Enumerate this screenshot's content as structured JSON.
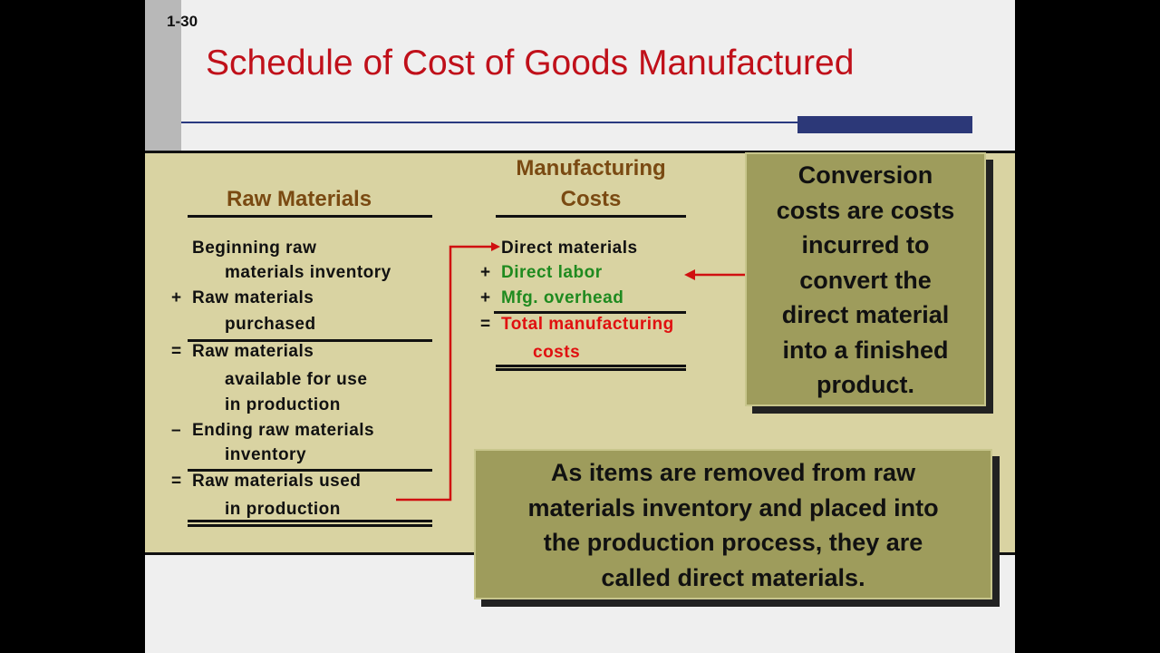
{
  "slide_number": "1-30",
  "title": "Schedule of Cost of Goods Manufactured",
  "raw_materials": {
    "heading": "Raw Materials",
    "rows": [
      {
        "lines": [
          "Beginning raw",
          "materials inventory"
        ]
      },
      {
        "op": "+",
        "lines": [
          "Raw materials",
          "purchased"
        ]
      },
      {
        "op": "=",
        "lines": [
          "Raw materials",
          "available for use",
          "in production"
        ]
      },
      {
        "op": "–",
        "lines": [
          "Ending raw materials",
          "inventory"
        ]
      },
      {
        "op": "=",
        "lines": [
          "Raw materials used",
          "in production"
        ]
      }
    ]
  },
  "manufacturing_costs": {
    "heading": [
      "Manufacturing",
      "Costs"
    ],
    "rows": [
      {
        "lines": [
          "Direct materials"
        ]
      },
      {
        "op": "+",
        "lines": [
          "Direct labor"
        ]
      },
      {
        "op": "+",
        "lines": [
          "Mfg. overhead"
        ]
      },
      {
        "op": "=",
        "lines": [
          "Total manufacturing",
          "costs"
        ]
      }
    ]
  },
  "callouts": [
    {
      "lines": [
        "Conversion",
        "costs are costs",
        "incurred to",
        "convert the",
        "direct material",
        "into a finished",
        "product."
      ]
    },
    {
      "lines": [
        "As items are removed from raw",
        "materials inventory and placed into",
        "the production process, they are",
        "called direct materials."
      ]
    }
  ]
}
